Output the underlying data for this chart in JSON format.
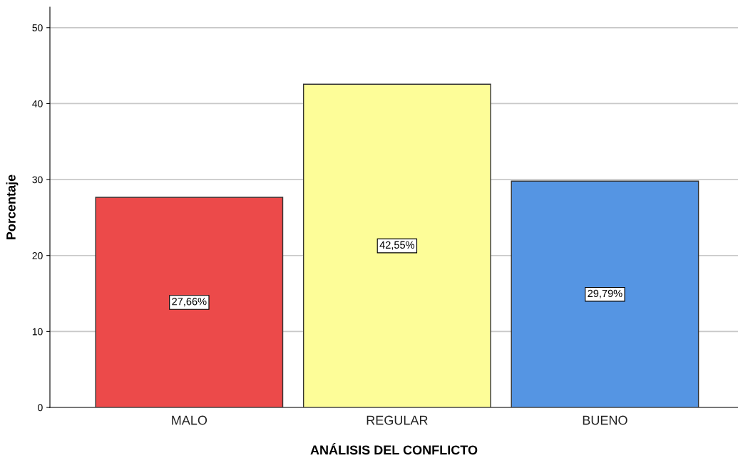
{
  "chart_data": {
    "type": "bar",
    "xlabel": "ANÁLISIS DEL CONFLICTO",
    "ylabel": "Porcentaje",
    "categories": [
      "MALO",
      "REGULAR",
      "BUENO"
    ],
    "values": [
      27.66,
      42.55,
      29.79
    ],
    "colors": [
      "#ec4a4a",
      "#fdfd98",
      "#5595e3"
    ],
    "value_labels": [
      "27,66%",
      "42,55%",
      "29,79%"
    ],
    "ylim": [
      0,
      52.7
    ],
    "yticks": [
      0,
      10,
      20,
      30,
      40,
      50
    ],
    "grid": "y"
  }
}
